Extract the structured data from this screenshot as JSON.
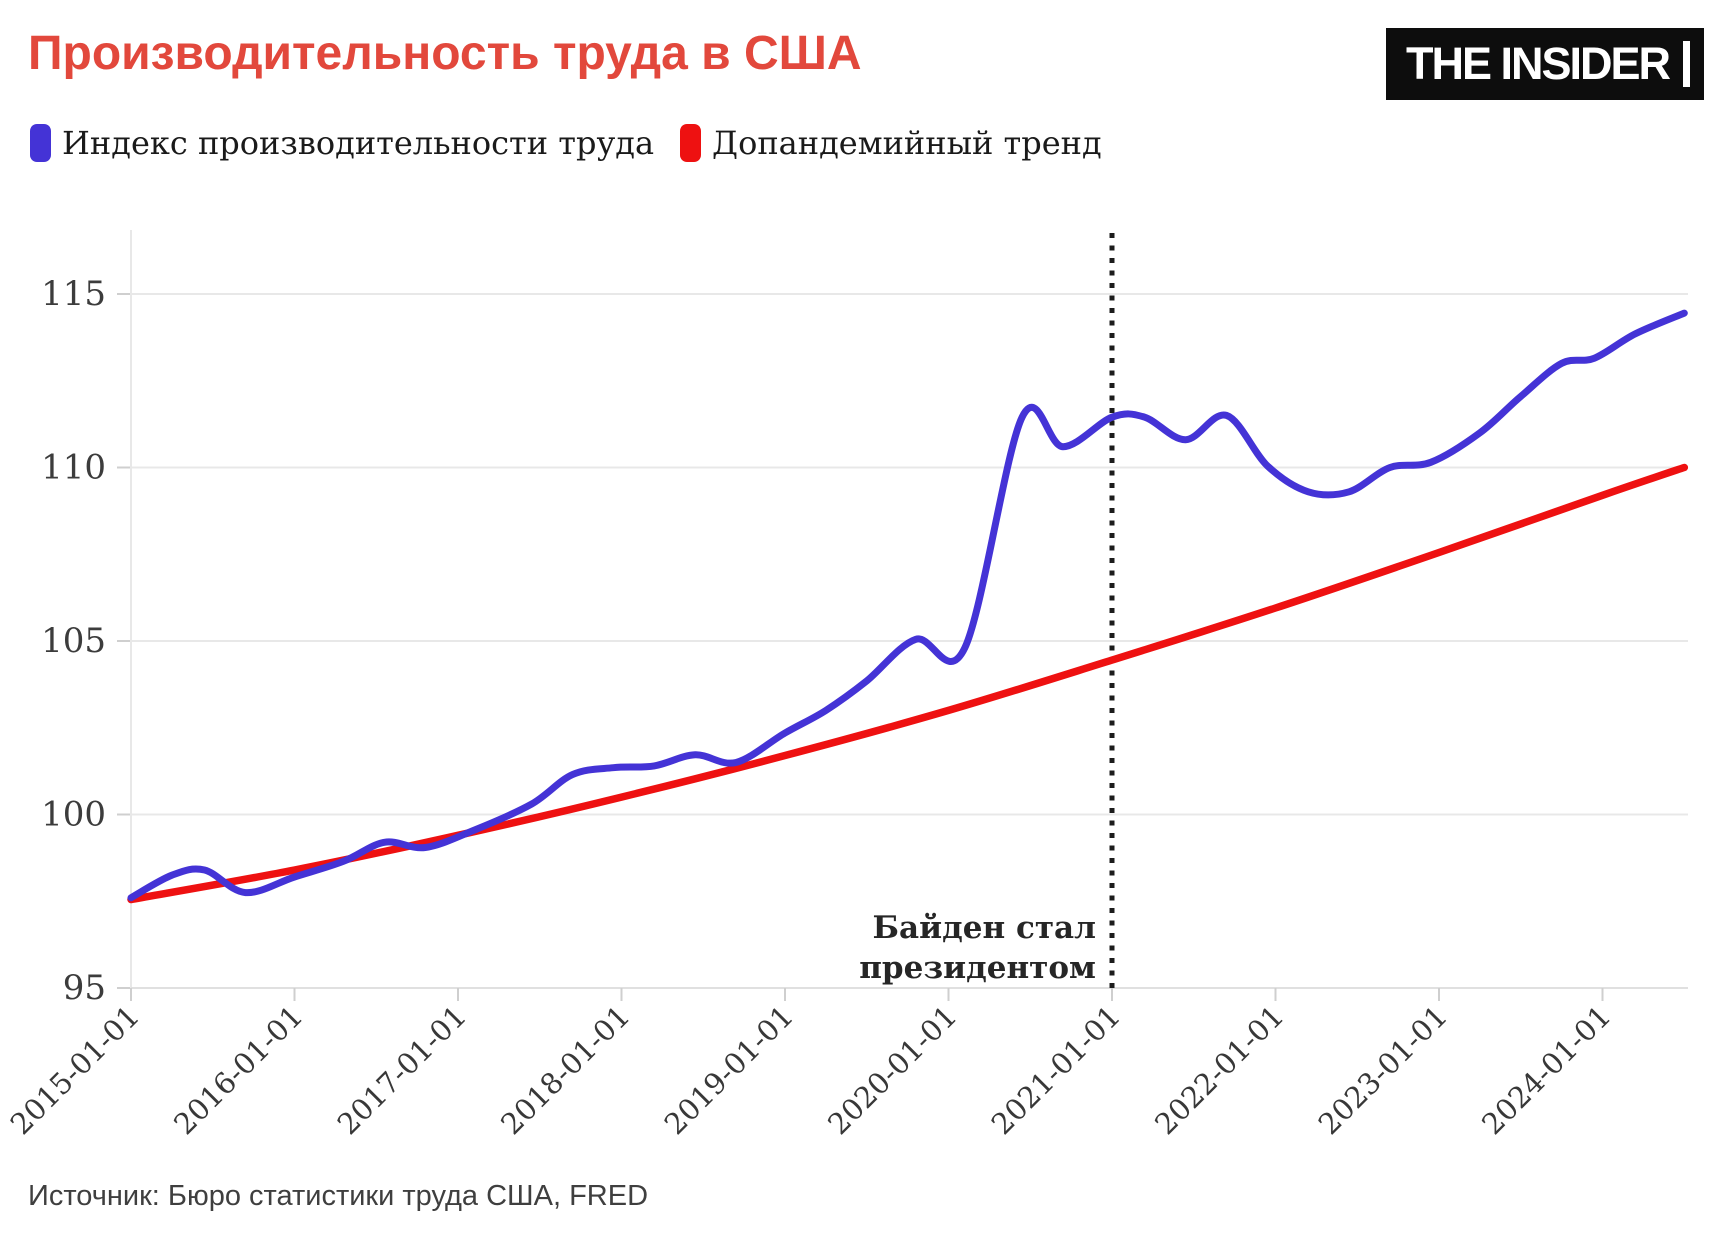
{
  "header": {
    "title": "Производительность труда в США",
    "title_color": "#e2483c",
    "logo_text": "THE INSIDER"
  },
  "legend": {
    "items": [
      {
        "label": "Индекс производительности труда",
        "color": "#4433d6"
      },
      {
        "label": "Допандемийный тренд",
        "color": "#ee1111"
      }
    ]
  },
  "footer": {
    "source": "Источник: Бюро статистики труда США, FRED"
  },
  "chart_data": {
    "type": "line",
    "title": "Производительность труда в США",
    "x_tick_labels": [
      "2015-01-01",
      "2016-01-01",
      "2017-01-01",
      "2018-01-01",
      "2019-01-01",
      "2020-01-01",
      "2021-01-01",
      "2022-01-01",
      "2023-01-01",
      "2024-01-01"
    ],
    "y_tick_labels": [
      95,
      100,
      105,
      110,
      115
    ],
    "x_range_years": [
      2015.0,
      2024.55
    ],
    "y_range": [
      95,
      116.7
    ],
    "grid": "horizontal",
    "legend_position": "top-left",
    "smoothing": "spline",
    "annotation": {
      "lines": [
        "Байден стал",
        "президентом"
      ],
      "x_year": 2021.0,
      "line_style": "dotted-vertical",
      "color": "#1c1c1c"
    },
    "series": [
      {
        "name": "Индекс производительности труда",
        "color": "#4433d6",
        "points": [
          [
            2015.0,
            97.6
          ],
          [
            2015.25,
            98.25
          ],
          [
            2015.45,
            98.4
          ],
          [
            2015.7,
            97.75
          ],
          [
            2016.0,
            98.2
          ],
          [
            2016.3,
            98.65
          ],
          [
            2016.55,
            99.2
          ],
          [
            2016.8,
            99.05
          ],
          [
            2017.1,
            99.55
          ],
          [
            2017.45,
            100.3
          ],
          [
            2017.7,
            101.15
          ],
          [
            2017.95,
            101.35
          ],
          [
            2018.2,
            101.4
          ],
          [
            2018.45,
            101.72
          ],
          [
            2018.7,
            101.5
          ],
          [
            2019.0,
            102.35
          ],
          [
            2019.25,
            103.0
          ],
          [
            2019.5,
            103.85
          ],
          [
            2019.8,
            105.05
          ],
          [
            2020.1,
            104.8
          ],
          [
            2020.45,
            111.45
          ],
          [
            2020.7,
            110.6
          ],
          [
            2021.0,
            111.45
          ],
          [
            2021.2,
            111.45
          ],
          [
            2021.45,
            110.8
          ],
          [
            2021.7,
            111.5
          ],
          [
            2021.95,
            110.05
          ],
          [
            2022.2,
            109.3
          ],
          [
            2022.45,
            109.3
          ],
          [
            2022.7,
            110.0
          ],
          [
            2022.95,
            110.15
          ],
          [
            2023.25,
            111.0
          ],
          [
            2023.5,
            112.05
          ],
          [
            2023.75,
            113.0
          ],
          [
            2023.95,
            113.15
          ],
          [
            2024.2,
            113.85
          ],
          [
            2024.5,
            114.45
          ]
        ]
      },
      {
        "name": "Допандемийный тренд",
        "color": "#ee1111",
        "points": [
          [
            2015.0,
            97.55
          ],
          [
            2016.0,
            98.4
          ],
          [
            2017.0,
            99.4
          ],
          [
            2018.0,
            100.5
          ],
          [
            2019.0,
            101.7
          ],
          [
            2020.0,
            103.0
          ],
          [
            2021.0,
            104.45
          ],
          [
            2022.0,
            105.95
          ],
          [
            2023.0,
            107.55
          ],
          [
            2024.0,
            109.2
          ],
          [
            2024.5,
            110.0
          ]
        ]
      }
    ]
  }
}
